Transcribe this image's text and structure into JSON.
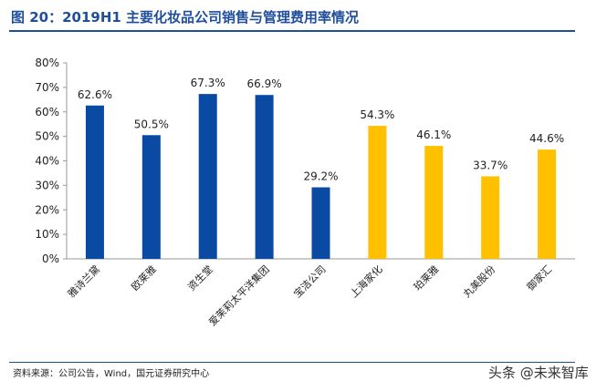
{
  "header": {
    "title": "图 20：2019H1 主要化妆品公司销售与管理费用率情况"
  },
  "footer": {
    "source": "资料来源：公司公告，Wind，国元证券研究中心",
    "watermark": "头条 @未来智库"
  },
  "chart_data": {
    "type": "bar",
    "title": "2019H1 主要化妆品公司销售与管理费用率情况",
    "categories": [
      "雅诗兰黛",
      "欧莱雅",
      "资生堂",
      "爱茉莉太平洋集团",
      "宝洁公司",
      "上海家化",
      "珀莱雅",
      "丸美股份",
      "御家汇"
    ],
    "values": [
      62.6,
      50.5,
      67.3,
      66.9,
      29.2,
      54.3,
      46.1,
      33.7,
      44.6
    ],
    "data_labels": [
      "62.6%",
      "50.5%",
      "67.3%",
      "66.9%",
      "29.2%",
      "54.3%",
      "46.1%",
      "33.7%",
      "44.6%"
    ],
    "bar_colors": [
      "#0a4aa3",
      "#0a4aa3",
      "#0a4aa3",
      "#0a4aa3",
      "#0a4aa3",
      "#ffc000",
      "#ffc000",
      "#ffc000",
      "#ffc000"
    ],
    "y_ticks": [
      "0%",
      "10%",
      "20%",
      "30%",
      "40%",
      "50%",
      "60%",
      "70%",
      "80%"
    ],
    "ylim": [
      0,
      80
    ],
    "xlabel": "",
    "ylabel": "",
    "grid": false,
    "legend": "none"
  }
}
